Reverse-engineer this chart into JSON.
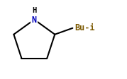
{
  "background_color": "#ffffff",
  "ring_color": "#000000",
  "bond_color": "#000000",
  "N_color": "#0000bb",
  "H_color": "#000000",
  "Bu_color": "#7B5800",
  "line_width": 1.5,
  "N_label": "N",
  "H_label": "H",
  "Bu_label": "Bu-i",
  "font_size_N": 8.5,
  "font_size_H": 7.5,
  "font_size_Bu": 8.5,
  "xlim": [
    0,
    1.0
  ],
  "ylim": [
    0,
    0.63
  ]
}
